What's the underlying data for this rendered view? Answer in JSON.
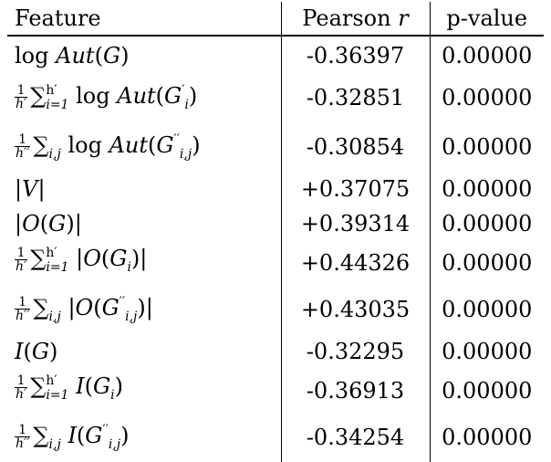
{
  "table": {
    "headers": {
      "feature": "Feature",
      "pearson": "Pearson r",
      "pvalue": "p-value"
    },
    "rows": [
      {
        "feature": "log Aut(G)",
        "pearson": "-0.36397",
        "pvalue": "0.00000"
      },
      {
        "feature": "1/h' Σ_{i=1}^{h'} log Aut(G'_i)",
        "pearson": "-0.32851",
        "pvalue": "0.00000"
      },
      {
        "feature": "1/h'' Σ_{i,j} log Aut(G''_{i,j})",
        "pearson": "-0.30854",
        "pvalue": "0.00000"
      },
      {
        "feature": "|V|",
        "pearson": "+0.37075",
        "pvalue": "0.00000"
      },
      {
        "feature": "|O(G)|",
        "pearson": "+0.39314",
        "pvalue": "0.00000"
      },
      {
        "feature": "1/h' Σ_{i=1}^{h'} |O(G_i)|",
        "pearson": "+0.44326",
        "pvalue": "0.00000"
      },
      {
        "feature": "1/h'' Σ_{i,j} |O(G''_{i,j})|",
        "pearson": "+0.43035",
        "pvalue": "0.00000"
      },
      {
        "feature": "I(G)",
        "pearson": "-0.32295",
        "pvalue": "0.00000"
      },
      {
        "feature": "1/h' Σ_{i=1}^{h'} I(G_i)",
        "pearson": "-0.36913",
        "pvalue": "0.00000"
      },
      {
        "feature": "1/h'' Σ_{i,j} I(G''_{i,j})",
        "pearson": "-0.34254",
        "pvalue": "0.00000"
      }
    ]
  }
}
